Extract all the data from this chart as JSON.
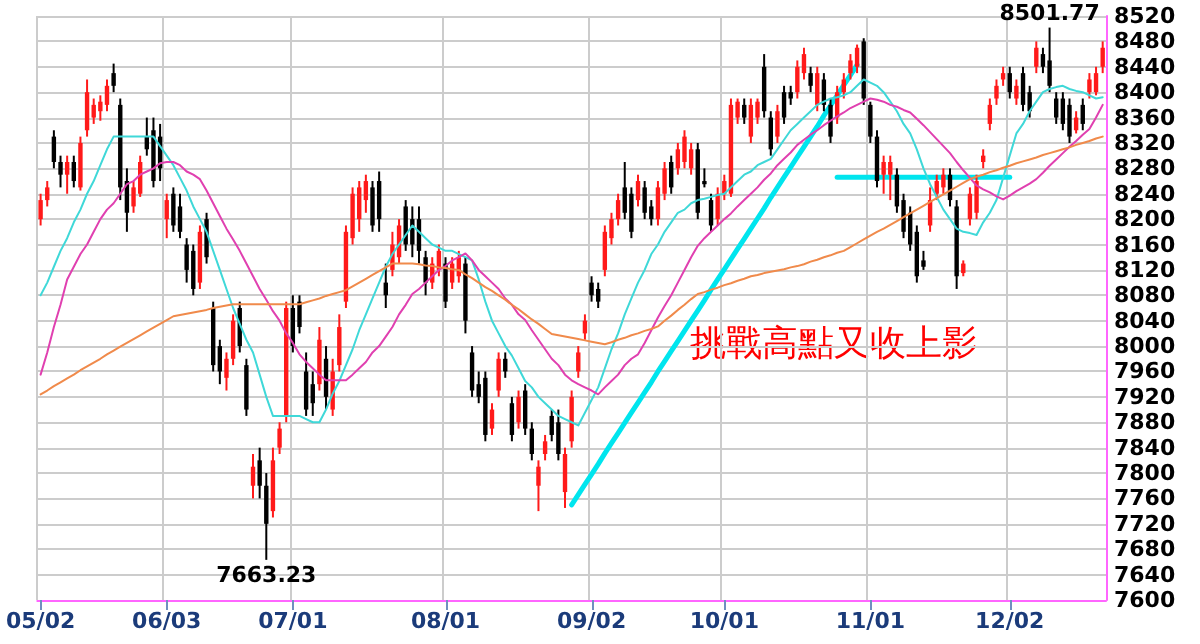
{
  "chart_data": {
    "type": "candlestick",
    "categories": [
      "05/02",
      null,
      null,
      null,
      null,
      null,
      null,
      null,
      null,
      null,
      null,
      null,
      null,
      null,
      null,
      null,
      null,
      null,
      null,
      "06/03",
      null,
      null,
      null,
      null,
      null,
      null,
      null,
      null,
      null,
      null,
      null,
      null,
      null,
      null,
      null,
      null,
      null,
      null,
      "07/01",
      null,
      null,
      null,
      null,
      null,
      null,
      null,
      null,
      null,
      null,
      null,
      null,
      null,
      null,
      null,
      null,
      null,
      null,
      null,
      null,
      null,
      null,
      "08/01",
      null,
      null,
      null,
      null,
      null,
      null,
      null,
      null,
      null,
      null,
      null,
      null,
      null,
      null,
      null,
      null,
      null,
      null,
      null,
      null,
      null,
      "09/02",
      null,
      null,
      null,
      null,
      null,
      null,
      null,
      null,
      null,
      null,
      null,
      null,
      null,
      null,
      null,
      null,
      null,
      null,
      null,
      "10/01",
      null,
      null,
      null,
      null,
      null,
      null,
      null,
      null,
      null,
      null,
      null,
      null,
      null,
      null,
      null,
      null,
      null,
      null,
      null,
      null,
      null,
      "11/01",
      null,
      null,
      null,
      null,
      null,
      null,
      null,
      null,
      null,
      null,
      null,
      null,
      null,
      null,
      null,
      null,
      null,
      null,
      null,
      null,
      "12/02",
      null,
      null,
      null,
      null,
      null,
      null,
      null,
      null,
      null,
      null,
      null,
      null,
      null,
      null
    ],
    "series": [
      {
        "type": "candlestick",
        "colors": [
          "#ff1a1a",
          "#ff1a1a",
          "#000000",
          "#000000",
          "#ff1a1a",
          "#000000",
          "#ff1a1a",
          "#ff1a1a",
          "#ff1a1a",
          "#ff1a1a",
          "#ff1a1a",
          "#000000",
          "#000000",
          "#000000",
          "#ff1a1a",
          "#ff1a1a",
          "#000000",
          "#000000",
          "#000000",
          "#ff1a1a",
          "#000000",
          "#000000",
          "#000000",
          "#000000",
          "#ff1a1a",
          "#000000",
          "#000000",
          "#000000",
          "#ff1a1a",
          "#ff1a1a",
          "#000000",
          "#000000",
          "#ff1a1a",
          "#000000",
          "#000000",
          "#ff1a1a",
          "#ff1a1a",
          "#ff1a1a",
          "#000000",
          "#000000",
          "#000000",
          "#000000",
          "#ff1a1a",
          "#000000",
          "#ff1a1a",
          "#ff1a1a",
          "#ff1a1a",
          "#ff1a1a",
          "#ff1a1a",
          "#ff1a1a",
          "#000000",
          "#000000",
          "#000000",
          "#ff1a1a",
          "#ff1a1a",
          "#000000",
          "#000000",
          "#000000",
          "#000000",
          "#ff1a1a",
          "#ff1a1a",
          "#000000",
          "#ff1a1a",
          "#ff1a1a",
          "#000000",
          "#000000",
          "#000000",
          "#000000",
          "#ff1a1a",
          "#ff1a1a",
          "#000000",
          "#000000",
          "#ff1a1a",
          "#000000",
          "#000000",
          "#ff1a1a",
          "#ff1a1a",
          "#000000",
          "#000000",
          "#ff1a1a",
          "#ff1a1a",
          "#ff1a1a",
          "#ff1a1a",
          "#000000",
          "#000000",
          "#ff1a1a",
          "#ff1a1a",
          "#ff1a1a",
          "#000000",
          "#000000",
          "#ff1a1a",
          "#000000",
          "#000000",
          "#ff1a1a",
          "#ff1a1a",
          "#000000",
          "#ff1a1a",
          "#ff1a1a",
          "#ff1a1a",
          "#000000",
          "#000000",
          "#000000",
          "#ff1a1a",
          "#ff1a1a",
          "#ff1a1a",
          "#ff1a1a",
          "#000000",
          "#ff1a1a",
          "#ff1a1a",
          "#000000",
          "#000000",
          "#ff1a1a",
          "#000000",
          "#000000",
          "#ff1a1a",
          "#ff1a1a",
          "#000000",
          "#ff1a1a",
          "#000000",
          "#000000",
          "#ff1a1a",
          "#ff1a1a",
          "#ff1a1a",
          "#ff1a1a",
          "#000000",
          "#000000",
          "#000000",
          "#ff1a1a",
          "#ff1a1a",
          "#000000",
          "#000000",
          "#000000",
          "#000000",
          "#000000",
          "#ff1a1a",
          "#ff1a1a",
          "#ff1a1a",
          "#000000",
          "#000000",
          "#ff1a1a",
          "#ff1a1a",
          "#ff1a1a",
          "#ff1a1a",
          "#ff1a1a",
          "#ff1a1a",
          "#ff1a1a",
          "#000000",
          "#ff1a1a",
          "#000000",
          "#000000",
          "#ff1a1a",
          "#000000",
          "#000000",
          "#000000",
          "#000000",
          "#000000",
          "#ff1a1a",
          "#000000",
          "#ff1a1a",
          "#ff1a1a",
          "#ff1a1a"
        ],
        "ohlc": [
          [
            8200,
            8240,
            8190,
            8230
          ],
          [
            8230,
            8260,
            8220,
            8250
          ],
          [
            8330,
            8340,
            8280,
            8290
          ],
          [
            8290,
            8300,
            8250,
            8270
          ],
          [
            8270,
            8300,
            8240,
            8290
          ],
          [
            8290,
            8300,
            8250,
            8260
          ],
          [
            8250,
            8330,
            8245,
            8320
          ],
          [
            8340,
            8420,
            8330,
            8400
          ],
          [
            8360,
            8390,
            8350,
            8380
          ],
          [
            8370,
            8395,
            8355,
            8385
          ],
          [
            8380,
            8420,
            8370,
            8410
          ],
          [
            8430,
            8445,
            8400,
            8410
          ],
          [
            8380,
            8390,
            8230,
            8250
          ],
          [
            8260,
            8280,
            8180,
            8210
          ],
          [
            8220,
            8260,
            8210,
            8250
          ],
          [
            8240,
            8300,
            8235,
            8290
          ],
          [
            8330,
            8360,
            8300,
            8310
          ],
          [
            8340,
            8360,
            8250,
            8260
          ],
          [
            8330,
            8350,
            8260,
            8280
          ],
          [
            8200,
            8240,
            8170,
            8230
          ],
          [
            8240,
            8250,
            8180,
            8190
          ],
          [
            8220,
            8240,
            8170,
            8180
          ],
          [
            8160,
            8170,
            8100,
            8120
          ],
          [
            8150,
            8160,
            8080,
            8090
          ],
          [
            8100,
            8190,
            8090,
            8180
          ],
          [
            8200,
            8210,
            8130,
            8140
          ],
          [
            8060,
            8070,
            7960,
            7970
          ],
          [
            8000,
            8010,
            7940,
            7960
          ],
          [
            7950,
            7990,
            7930,
            7980
          ],
          [
            7980,
            8050,
            7970,
            8040
          ],
          [
            8060,
            8070,
            7990,
            8000
          ],
          [
            7970,
            7980,
            7890,
            7900
          ],
          [
            7780,
            7830,
            7760,
            7810
          ],
          [
            7820,
            7840,
            7760,
            7780
          ],
          [
            7780,
            7800,
            7663.23,
            7720
          ],
          [
            7740,
            7840,
            7730,
            7820
          ],
          [
            7840,
            7880,
            7830,
            7870
          ],
          [
            7890,
            8070,
            7880,
            8060
          ],
          [
            8060,
            8080,
            7990,
            8000
          ],
          [
            8070,
            8080,
            8020,
            8030
          ],
          [
            7960,
            7990,
            7890,
            7900
          ],
          [
            7940,
            7960,
            7890,
            7910
          ],
          [
            7940,
            8030,
            7930,
            8010
          ],
          [
            7980,
            8000,
            7900,
            7920
          ],
          [
            7900,
            7980,
            7890,
            7960
          ],
          [
            7970,
            8050,
            7960,
            8030
          ],
          [
            8070,
            8190,
            8060,
            8180
          ],
          [
            8170,
            8250,
            8160,
            8240
          ],
          [
            8200,
            8260,
            8180,
            8250
          ],
          [
            8230,
            8270,
            8210,
            8260
          ],
          [
            8250,
            8260,
            8180,
            8190
          ],
          [
            8260,
            8275,
            8180,
            8200
          ],
          [
            8100,
            8130,
            8060,
            8080
          ],
          [
            8120,
            8180,
            8110,
            8160
          ],
          [
            8140,
            8200,
            8130,
            8190
          ],
          [
            8220,
            8230,
            8150,
            8160
          ],
          [
            8200,
            8220,
            8140,
            8160
          ],
          [
            8200,
            8220,
            8130,
            8150
          ],
          [
            8140,
            8150,
            8080,
            8100
          ],
          [
            8100,
            8140,
            8090,
            8130
          ],
          [
            8120,
            8160,
            8110,
            8150
          ],
          [
            8130,
            8140,
            8060,
            8070
          ],
          [
            8100,
            8140,
            8090,
            8130
          ],
          [
            8110,
            8150,
            8100,
            8140
          ],
          [
            8130,
            8140,
            8020,
            8040
          ],
          [
            7990,
            8000,
            7920,
            7930
          ],
          [
            7940,
            7960,
            7910,
            7920
          ],
          [
            7950,
            7960,
            7850,
            7860
          ],
          [
            7870,
            7910,
            7860,
            7900
          ],
          [
            7930,
            7990,
            7920,
            7980
          ],
          [
            7980,
            7990,
            7950,
            7960
          ],
          [
            7910,
            7920,
            7850,
            7860
          ],
          [
            7880,
            7930,
            7870,
            7920
          ],
          [
            7930,
            7940,
            7860,
            7870
          ],
          [
            7870,
            7880,
            7820,
            7830
          ],
          [
            7780,
            7820,
            7740,
            7810
          ],
          [
            7830,
            7860,
            7820,
            7850
          ],
          [
            7890,
            7900,
            7850,
            7860
          ],
          [
            7880,
            7900,
            7820,
            7830
          ],
          [
            7770,
            7840,
            7745,
            7830
          ],
          [
            7850,
            7930,
            7840,
            7920
          ],
          [
            7960,
            8000,
            7950,
            7990
          ],
          [
            8020,
            8050,
            8010,
            8040
          ],
          [
            8100,
            8110,
            8070,
            8080
          ],
          [
            8090,
            8100,
            8060,
            8070
          ],
          [
            8120,
            8190,
            8110,
            8180
          ],
          [
            8170,
            8210,
            8160,
            8200
          ],
          [
            8200,
            8240,
            8190,
            8230
          ],
          [
            8250,
            8290,
            8200,
            8210
          ],
          [
            8240,
            8250,
            8170,
            8180
          ],
          [
            8230,
            8270,
            8220,
            8260
          ],
          [
            8250,
            8260,
            8200,
            8210
          ],
          [
            8220,
            8230,
            8190,
            8200
          ],
          [
            8200,
            8260,
            8190,
            8250
          ],
          [
            8240,
            8290,
            8230,
            8280
          ],
          [
            8290,
            8300,
            8240,
            8250
          ],
          [
            8280,
            8320,
            8270,
            8310
          ],
          [
            8290,
            8340,
            8280,
            8330
          ],
          [
            8280,
            8320,
            8270,
            8310
          ],
          [
            8310,
            8320,
            8200,
            8210
          ],
          [
            8260,
            8280,
            8250,
            8255
          ],
          [
            8230,
            8240,
            8180,
            8190
          ],
          [
            8200,
            8250,
            8190,
            8240
          ],
          [
            8240,
            8270,
            8230,
            8260
          ],
          [
            8240,
            8390,
            8235,
            8380
          ],
          [
            8360,
            8390,
            8350,
            8385
          ],
          [
            8380,
            8390,
            8350,
            8360
          ],
          [
            8330,
            8390,
            8320,
            8380
          ],
          [
            8360,
            8390,
            8350,
            8385
          ],
          [
            8440,
            8460,
            8360,
            8370
          ],
          [
            8360,
            8370,
            8300,
            8310
          ],
          [
            8330,
            8380,
            8320,
            8370
          ],
          [
            8400,
            8410,
            8350,
            8360
          ],
          [
            8400,
            8410,
            8380,
            8390
          ],
          [
            8400,
            8450,
            8390,
            8440
          ],
          [
            8430,
            8470,
            8420,
            8460
          ],
          [
            8430,
            8440,
            8400,
            8410
          ],
          [
            8380,
            8440,
            8370,
            8430
          ],
          [
            8420,
            8430,
            8370,
            8380
          ],
          [
            8380,
            8390,
            8320,
            8330
          ],
          [
            8360,
            8410,
            8350,
            8400
          ],
          [
            8400,
            8430,
            8390,
            8420
          ],
          [
            8430,
            8460,
            8420,
            8450
          ],
          [
            8440,
            8475,
            8430,
            8470
          ],
          [
            8480,
            8485,
            8380,
            8390
          ],
          [
            8380,
            8385,
            8320,
            8330
          ],
          [
            8330,
            8340,
            8250,
            8260
          ],
          [
            8270,
            8300,
            8240,
            8290
          ],
          [
            8270,
            8300,
            8230,
            8290
          ],
          [
            8270,
            8280,
            8210,
            8220
          ],
          [
            8230,
            8240,
            8170,
            8180
          ],
          [
            8210,
            8220,
            8150,
            8160
          ],
          [
            8180,
            8190,
            8100,
            8110
          ],
          [
            8135,
            8150,
            8120,
            8125
          ],
          [
            8190,
            8250,
            8180,
            8230
          ],
          [
            8240,
            8270,
            8230,
            8260
          ],
          [
            8250,
            8280,
            8240,
            8270
          ],
          [
            8270,
            8280,
            8220,
            8230
          ],
          [
            8220,
            8230,
            8090,
            8110
          ],
          [
            8115,
            8135,
            8110,
            8130
          ],
          [
            8200,
            8250,
            8190,
            8240
          ],
          [
            8210,
            8270,
            8200,
            8260
          ],
          [
            8290,
            8310,
            8280,
            8300
          ],
          [
            8350,
            8390,
            8340,
            8380
          ],
          [
            8390,
            8420,
            8380,
            8410
          ],
          [
            8420,
            8440,
            8410,
            8430
          ],
          [
            8430,
            8440,
            8390,
            8400
          ],
          [
            8390,
            8420,
            8380,
            8410
          ],
          [
            8430,
            8440,
            8370,
            8380
          ],
          [
            8400,
            8410,
            8360,
            8370
          ],
          [
            8440,
            8480,
            8430,
            8470
          ],
          [
            8460,
            8470,
            8430,
            8440
          ],
          [
            8450,
            8501.77,
            8400,
            8410
          ],
          [
            8390,
            8400,
            8350,
            8360
          ],
          [
            8390,
            8400,
            8340,
            8350
          ],
          [
            8380,
            8390,
            8320,
            8330
          ],
          [
            8340,
            8370,
            8335,
            8360
          ],
          [
            8380,
            8390,
            8340,
            8350
          ],
          [
            8400,
            8430,
            8390,
            8420
          ],
          [
            8400,
            8440,
            8395,
            8430
          ],
          [
            8440,
            8480,
            8430,
            8470
          ]
        ]
      },
      {
        "type": "line",
        "color": "#3fd8d8",
        "values": [
          8080,
          8100,
          8125,
          8150,
          8170,
          8195,
          8215,
          8240,
          8260,
          8285,
          8310,
          8330,
          8330,
          8330,
          8330,
          8330,
          8330,
          8330,
          8315,
          8300,
          8285,
          8265,
          8245,
          8220,
          8200,
          8180,
          8150,
          8120,
          8090,
          8060,
          8035,
          8010,
          7990,
          7955,
          7920,
          7890,
          7890,
          7890,
          7890,
          7890,
          7885,
          7880,
          7880,
          7900,
          7925,
          7945,
          7970,
          7995,
          8025,
          8050,
          8075,
          8100,
          8125,
          8145,
          8160,
          8175,
          8190,
          8180,
          8170,
          8160,
          8155,
          8150,
          8150,
          8145,
          8140,
          8135,
          8105,
          8070,
          8040,
          8020,
          8000,
          7985,
          7965,
          7945,
          7935,
          7920,
          7910,
          7900,
          7890,
          7885,
          7880,
          7875,
          7895,
          7915,
          7935,
          7965,
          7995,
          8020,
          8050,
          8075,
          8100,
          8120,
          8145,
          8160,
          8180,
          8195,
          8210,
          8215,
          8225,
          8230,
          8232,
          8235,
          8238,
          8240,
          8250,
          8260,
          8270,
          8275,
          8285,
          8290,
          8295,
          8310,
          8325,
          8340,
          8350,
          8360,
          8370,
          8380,
          8385,
          8390,
          8392,
          8395,
          8400,
          8410,
          8420,
          8415,
          8410,
          8400,
          8385,
          8370,
          8350,
          8335,
          8310,
          8280,
          8255,
          8235,
          8215,
          8200,
          8185,
          8180,
          8178,
          8175,
          8195,
          8210,
          8230,
          8265,
          8300,
          8335,
          8350,
          8370,
          8385,
          8400,
          8405,
          8408,
          8410,
          8405,
          8402,
          8400,
          8395,
          8390,
          8392
        ]
      },
      {
        "type": "line",
        "color": "#e040b0",
        "values": [
          7955,
          7990,
          8030,
          8065,
          8105,
          8125,
          8145,
          8160,
          8180,
          8200,
          8215,
          8225,
          8240,
          8255,
          8260,
          8270,
          8275,
          8280,
          8288,
          8290,
          8290,
          8285,
          8275,
          8270,
          8263,
          8245,
          8225,
          8205,
          8185,
          8168,
          8150,
          8130,
          8110,
          8090,
          8073,
          8055,
          8040,
          8020,
          8005,
          7987,
          7975,
          7965,
          7955,
          7946,
          7946,
          7946,
          7946,
          7955,
          7965,
          7975,
          7990,
          8000,
          8015,
          8030,
          8050,
          8065,
          8082,
          8090,
          8100,
          8110,
          8120,
          8126,
          8135,
          8140,
          8146,
          8135,
          8120,
          8110,
          8100,
          8090,
          8075,
          8065,
          8050,
          8041,
          8025,
          8010,
          7995,
          7980,
          7970,
          7955,
          7946,
          7940,
          7935,
          7930,
          7924,
          7935,
          7945,
          7955,
          7970,
          7980,
          7987,
          8005,
          8025,
          8045,
          8063,
          8080,
          8100,
          8120,
          8140,
          8158,
          8170,
          8180,
          8190,
          8200,
          8209,
          8220,
          8230,
          8240,
          8250,
          8262,
          8272,
          8285,
          8295,
          8305,
          8317,
          8325,
          8333,
          8340,
          8348,
          8355,
          8362,
          8368,
          8375,
          8380,
          8385,
          8390,
          8388,
          8385,
          8380,
          8377,
          8372,
          8368,
          8358,
          8348,
          8337,
          8326,
          8315,
          8304,
          8290,
          8277,
          8265,
          8253,
          8247,
          8242,
          8236,
          8231,
          8237,
          8244,
          8250,
          8256,
          8263,
          8273,
          8284,
          8294,
          8304,
          8314,
          8323,
          8333,
          8342,
          8360,
          8380
        ]
      },
      {
        "type": "line",
        "color": "#f08a4b",
        "values": [
          7924,
          7930,
          7937,
          7943,
          7949,
          7955,
          7962,
          7968,
          7974,
          7980,
          7987,
          7993,
          7999,
          8005,
          8011,
          8017,
          8023,
          8029,
          8035,
          8041,
          8047,
          8049,
          8051,
          8053,
          8055,
          8057,
          8060,
          8062,
          8064,
          8066,
          8066,
          8066,
          8066,
          8066,
          8066,
          8066,
          8066,
          8066,
          8066,
          8066,
          8069,
          8072,
          8075,
          8079,
          8082,
          8085,
          8088,
          8094,
          8100,
          8106,
          8112,
          8118,
          8124,
          8130,
          8130,
          8130,
          8130,
          8129,
          8127,
          8126,
          8124,
          8123,
          8121,
          8120,
          8113,
          8107,
          8100,
          8093,
          8087,
          8080,
          8073,
          8065,
          8058,
          8050,
          8042,
          8035,
          8027,
          8019,
          8017,
          8015,
          8013,
          8011,
          8009,
          8007,
          8005,
          8003,
          8006,
          8010,
          8013,
          8017,
          8020,
          8024,
          8027,
          8031,
          8040,
          8048,
          8057,
          8065,
          8074,
          8082,
          8085,
          8089,
          8092,
          8096,
          8099,
          8103,
          8106,
          8110,
          8112,
          8115,
          8117,
          8119,
          8121,
          8124,
          8126,
          8129,
          8133,
          8136,
          8140,
          8143,
          8147,
          8150,
          8156,
          8162,
          8168,
          8174,
          8180,
          8185,
          8191,
          8197,
          8203,
          8209,
          8215,
          8221,
          8227,
          8233,
          8239,
          8245,
          8251,
          8257,
          8263,
          8267,
          8270,
          8274,
          8277,
          8281,
          8284,
          8288,
          8291,
          8294,
          8297,
          8301,
          8304,
          8307,
          8310,
          8313,
          8317,
          8320,
          8323,
          8327,
          8330
        ]
      },
      {
        "type": "line",
        "color": "#00e5ee",
        "values": [
          null,
          null,
          null,
          null,
          null,
          null,
          null,
          null,
          null,
          null,
          null,
          null,
          null,
          null,
          null,
          null,
          null,
          null,
          null,
          null,
          null,
          null,
          null,
          null,
          null,
          null,
          null,
          null,
          null,
          null,
          null,
          null,
          null,
          null,
          null,
          null,
          null,
          null,
          null,
          null,
          null,
          null,
          null,
          null,
          null,
          null,
          null,
          null,
          null,
          null,
          null,
          null,
          null,
          null,
          null,
          null,
          null,
          null,
          null,
          null,
          null,
          null,
          null,
          null,
          null,
          null,
          null,
          null,
          null,
          null,
          null,
          null,
          null,
          null,
          null,
          null,
          null,
          null,
          null,
          null,
          7750,
          7766,
          7782,
          7798,
          7814,
          7831,
          7847,
          7863,
          7879,
          7895,
          7911,
          7927,
          7943,
          7960,
          7976,
          7992,
          8008,
          8024,
          8040,
          8056,
          8072,
          8089,
          8105,
          8121,
          8137,
          8153,
          8169,
          8185,
          8201,
          8217,
          8234,
          8250,
          8266,
          8282,
          8298,
          8314,
          8330,
          8346,
          8363,
          8379,
          8395,
          8411,
          8427,
          8443,
          null,
          null,
          null,
          null,
          null,
          null,
          null,
          null,
          null,
          null,
          null,
          null,
          null,
          null,
          null,
          null,
          null,
          null,
          null,
          null,
          null,
          null,
          null,
          null,
          null,
          null,
          null,
          null,
          null,
          null,
          null,
          null,
          null,
          null,
          null,
          null,
          null
        ]
      },
      {
        "type": "line",
        "color": "#00e5ee",
        "values": [
          null,
          null,
          null,
          null,
          null,
          null,
          null,
          null,
          null,
          null,
          null,
          null,
          null,
          null,
          null,
          null,
          null,
          null,
          null,
          null,
          null,
          null,
          null,
          null,
          null,
          null,
          null,
          null,
          null,
          null,
          null,
          null,
          null,
          null,
          null,
          null,
          null,
          null,
          null,
          null,
          null,
          null,
          null,
          null,
          null,
          null,
          null,
          null,
          null,
          null,
          null,
          null,
          null,
          null,
          null,
          null,
          null,
          null,
          null,
          null,
          null,
          null,
          null,
          null,
          null,
          null,
          null,
          null,
          null,
          null,
          null,
          null,
          null,
          null,
          null,
          null,
          null,
          null,
          null,
          null,
          null,
          null,
          null,
          null,
          null,
          null,
          null,
          null,
          null,
          null,
          null,
          null,
          null,
          null,
          null,
          null,
          null,
          null,
          null,
          null,
          null,
          null,
          null,
          null,
          null,
          null,
          null,
          null,
          null,
          null,
          null,
          null,
          null,
          null,
          null,
          null,
          null,
          null,
          null,
          null,
          8266,
          8266,
          8266,
          8266,
          8266,
          8266,
          8266,
          8266,
          8266,
          8266,
          8266,
          8266,
          8266,
          8266,
          8266,
          8266,
          8266,
          8266,
          8266,
          8266,
          8266,
          8266,
          8266,
          8266,
          8266,
          8266,
          8266,
          null,
          null,
          null,
          null,
          null,
          null,
          null,
          null,
          null,
          null,
          null,
          null,
          null,
          null
        ]
      }
    ],
    "ylim": [
      7600,
      8520
    ],
    "yticks": [
      7600,
      7640,
      7680,
      7720,
      7760,
      7800,
      7840,
      7880,
      7920,
      7960,
      8000,
      8040,
      8080,
      8120,
      8160,
      8200,
      8240,
      8280,
      8320,
      8360,
      8400,
      8440,
      8480,
      8520
    ],
    "grid": true,
    "annotations": [
      "7663.23",
      {
        "text": "8501.77",
        "y": 8501.77
      },
      "挑戰高點又收上影"
    ]
  }
}
